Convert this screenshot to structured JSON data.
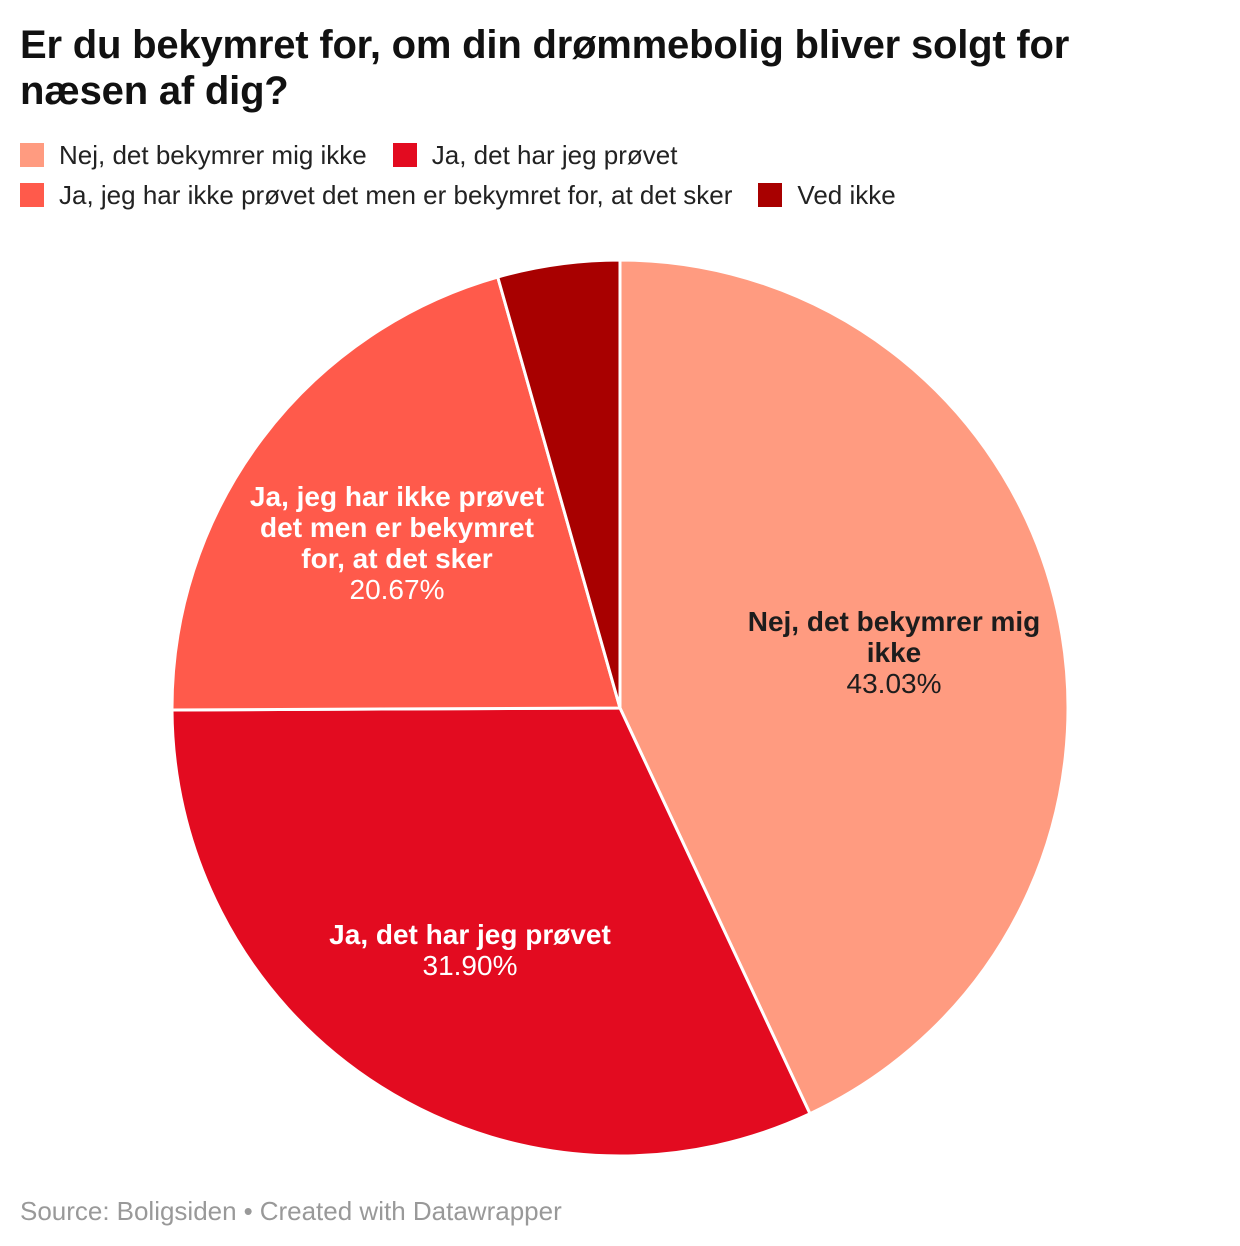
{
  "title": "Er du bekymret for, om din drømmebolig bliver solgt for næsen af dig?",
  "chart_data": {
    "type": "pie",
    "title": "Er du bekymret for, om din drømmebolig bliver solgt for næsen af dig?",
    "legend_position": "top",
    "start_angle_deg": 0,
    "clockwise": true,
    "stroke_color": "#ffffff",
    "slices": [
      {
        "label": "Nej, det bekymrer mig ikke",
        "value": 43.03,
        "pct_label": "43.03%",
        "color": "#ff9b80",
        "label_color": "#1d1d1d",
        "label_lines": [
          "Nej, det bekymrer mig",
          "ikke"
        ]
      },
      {
        "label": "Ja, det har jeg prøvet",
        "value": 31.9,
        "pct_label": "31.90%",
        "color": "#e30b20",
        "label_color": "#ffffff",
        "label_lines": [
          "Ja, det har jeg prøvet"
        ]
      },
      {
        "label": "Ja, jeg har ikke prøvet det men er bekymret for, at det sker",
        "value": 20.67,
        "pct_label": "20.67%",
        "color": "#ff5a4b",
        "label_color": "#ffffff",
        "label_lines": [
          "Ja, jeg har ikke prøvet",
          "det men er bekymret",
          "for, at det sker"
        ]
      },
      {
        "label": "Ved ikke",
        "value": 4.4,
        "color": "#a80000",
        "label_color": "#ffffff",
        "label_lines": []
      }
    ]
  },
  "footer": {
    "source_label": "Source:",
    "source_name": "Boligsiden",
    "separator": "•",
    "attribution": "Created with Datawrapper"
  }
}
